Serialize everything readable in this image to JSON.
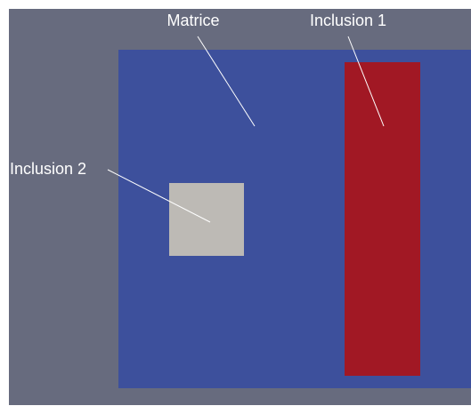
{
  "colors": {
    "page": "#ffffff",
    "viewport_background": "#676b7e",
    "matrix": "#3d509c",
    "inclusion_1": "#a11824",
    "inclusion_2": "#bdbab5",
    "annotation": "#ffffff"
  },
  "labels": {
    "matrix": "Matrice",
    "inclusion_1": "Inclusion 1",
    "inclusion_2": "Inclusion 2"
  }
}
